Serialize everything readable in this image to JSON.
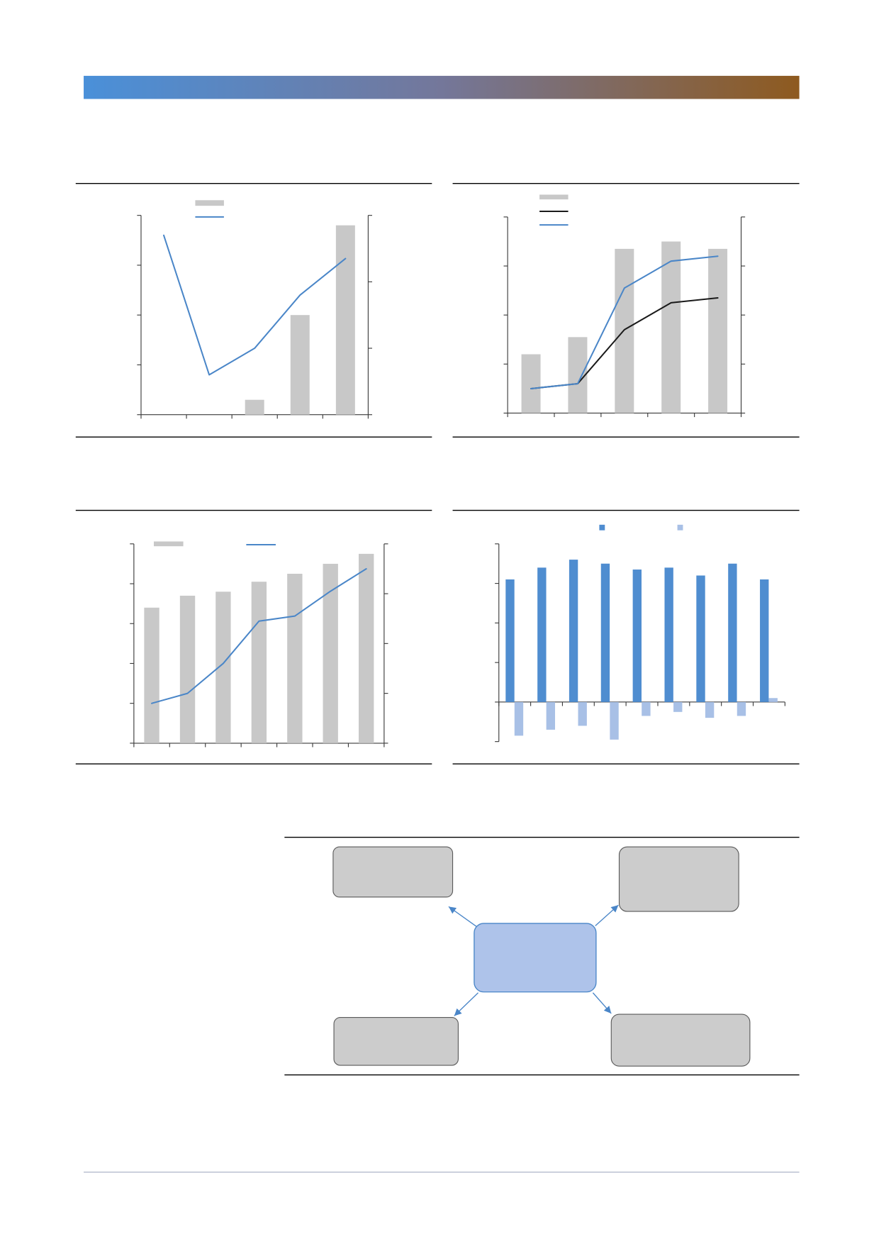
{
  "colors": {
    "header_gradient": [
      "#4a90d9",
      "#74779a",
      "#8e5a1f"
    ],
    "rule": "#000000",
    "footer_rule": "#a6aec2",
    "axis": "#3a3a3a",
    "diagram_center_fill": "#aec3ea",
    "diagram_center_border": "#4a86c8",
    "diagram_box_fill": "#cccccc",
    "diagram_box_border": "#5a5a5a",
    "diagram_arrow": "#4a86c8"
  },
  "chart_data": [
    {
      "type": "bar",
      "series": [
        {
          "type": "bar",
          "axis": "left",
          "color": "#c8c8c8",
          "values": [
            0,
            0,
            0.3,
            2.0,
            3.8
          ]
        },
        {
          "type": "line",
          "axis": "right",
          "color": "#4a86c8",
          "values": [
            2.7,
            0.6,
            1.0,
            1.8,
            2.35
          ]
        }
      ],
      "ylim": [
        0,
        4
      ],
      "ylim_right": [
        0,
        3
      ],
      "grid": false,
      "legend": "top-left"
    },
    {
      "type": "bar",
      "series": [
        {
          "type": "bar",
          "axis": "left",
          "color": "#c8c8c8",
          "values": [
            1.2,
            1.55,
            3.35,
            3.5,
            3.35
          ]
        },
        {
          "type": "line",
          "axis": "right",
          "color": "#1a1a1a",
          "values": [
            0.5,
            0.6,
            1.7,
            2.25,
            2.35
          ]
        },
        {
          "type": "line",
          "axis": "right",
          "color": "#4a86c8",
          "values": [
            0.5,
            0.6,
            2.55,
            3.1,
            3.2
          ]
        }
      ],
      "ylim": [
        0,
        4
      ],
      "ylim_right": [
        0,
        4
      ],
      "grid": false,
      "legend": "top-left"
    },
    {
      "type": "bar",
      "series": [
        {
          "type": "bar",
          "axis": "left",
          "color": "#c8c8c8",
          "values": [
            3.4,
            3.7,
            3.8,
            4.05,
            4.25,
            4.5,
            4.75
          ]
        },
        {
          "type": "line",
          "axis": "right",
          "color": "#4a86c8",
          "values": [
            0.8,
            1.0,
            1.6,
            2.45,
            2.55,
            3.05,
            3.5
          ]
        }
      ],
      "ylim": [
        0,
        5
      ],
      "ylim_right": [
        0,
        4
      ],
      "grid": false,
      "legend": "top"
    },
    {
      "type": "bar",
      "series": [
        {
          "type": "bar",
          "axis": "left",
          "color": "#4f8dd0",
          "values": [
            3.1,
            3.4,
            3.6,
            3.5,
            3.35,
            3.4,
            3.2,
            3.5,
            3.1
          ]
        },
        {
          "type": "bar",
          "axis": "left",
          "color": "#a8c0e6",
          "values": [
            -0.85,
            -0.7,
            -0.6,
            -0.95,
            -0.35,
            -0.25,
            -0.4,
            -0.35,
            0.1
          ]
        }
      ],
      "ylim": [
        -1,
        4
      ],
      "grid": false,
      "legend": "top"
    }
  ]
}
